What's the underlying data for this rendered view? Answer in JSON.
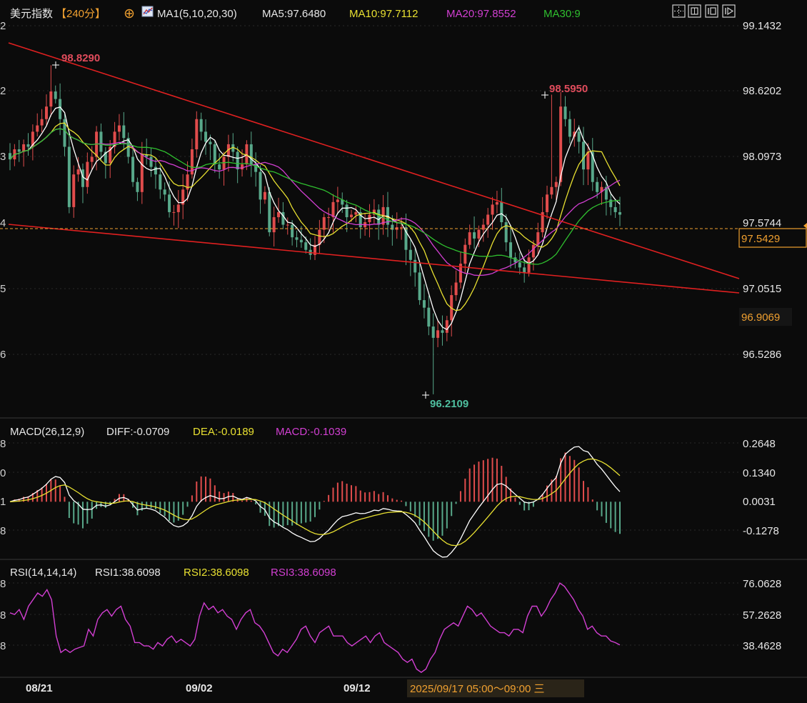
{
  "colors": {
    "background": "#0b0b0b",
    "text": "#e6e6e6",
    "up": "#e04c4c",
    "down": "#58a88a",
    "ma5": "#ffffff",
    "ma10": "#e8e031",
    "ma20": "#d23fd2",
    "ma30": "#2fbf2f",
    "trendline": "#e02020",
    "current_price": "#f0a030",
    "high_label": "#e04c5c",
    "low_label": "#4fbf9f"
  },
  "header": {
    "title": "美元指数",
    "period": "【240分】",
    "period_icon": "circle-plus-icon",
    "ma_icon": "ma-line-chart-icon",
    "ma_label": "MA1(5,10,20,30)",
    "ma5": "MA5:97.6480",
    "ma10": "MA10:97.7112",
    "ma20": "MA20:97.8552",
    "ma30": "MA30:9"
  },
  "toolbar_icons": [
    "layout-grid-icon",
    "window-split-icon",
    "chart-panel-icon",
    "expand-icon"
  ],
  "price_axis": {
    "labels": [
      "99.1432",
      "98.6202",
      "98.0973",
      "97.5744",
      "97.0515",
      "96.5286"
    ],
    "left_partial": [
      "2",
      "2",
      "3",
      "4",
      "5",
      "6"
    ],
    "current_price": "97.5429",
    "lower_box": "96.9069"
  },
  "annotations": {
    "high_left": "98.8290",
    "high_right": "98.5950",
    "low": "96.2109"
  },
  "macd": {
    "header": "MACD(26,12,9)",
    "diff": "DIFF:-0.0709",
    "dea": "DEA:-0.0189",
    "macd": "MACD:-0.1039",
    "labels": [
      "0.2648",
      "0.1340",
      "0.0031",
      "-0.1278"
    ],
    "left_partial": [
      "8",
      "0",
      "1",
      "8"
    ]
  },
  "rsi": {
    "header": "RSI(14,14,14)",
    "rsi1": "RSI1:38.6098",
    "rsi2": "RSI2:38.6098",
    "rsi3": "RSI3:38.6098",
    "labels": [
      "76.0628",
      "57.2628",
      "38.4628"
    ],
    "left_partial": [
      "8",
      "8",
      "8"
    ]
  },
  "time_axis": {
    "labels": [
      "08/21",
      "09/02",
      "09/12"
    ],
    "cursor": "2025/09/17 05:00～09:00 三"
  },
  "chart_data": {
    "type": "candlestick",
    "instrument": "美元指数",
    "period": "240分",
    "price_ticks": [
      99.1432,
      98.6202,
      98.0973,
      97.5744,
      97.0515,
      96.5286
    ],
    "close": [
      98.08,
      98.16,
      98.14,
      98.2,
      98.18,
      98.3,
      98.35,
      98.4,
      98.5,
      98.62,
      98.56,
      98.4,
      98.18,
      97.7,
      97.96,
      98.0,
      97.86,
      98.06,
      98.1,
      98.3,
      98.14,
      98.05,
      98.18,
      98.3,
      98.35,
      98.25,
      98.1,
      97.9,
      97.82,
      98.12,
      98.1,
      98.02,
      97.96,
      97.84,
      97.8,
      97.66,
      97.66,
      97.72,
      97.84,
      97.96,
      98.16,
      98.4,
      98.3,
      98.22,
      98.2,
      98.04,
      98.0,
      98.1,
      98.2,
      98.14,
      98.0,
      98.04,
      98.2,
      98.04,
      97.98,
      97.76,
      97.82,
      97.5,
      97.62,
      97.66,
      97.56,
      97.56,
      97.46,
      97.44,
      97.42,
      97.36,
      97.32,
      97.4,
      97.52,
      97.62,
      97.62,
      97.74,
      97.76,
      97.72,
      97.62,
      97.64,
      97.66,
      97.54,
      97.58,
      97.64,
      97.68,
      97.56,
      97.7,
      97.56,
      97.52,
      97.54,
      97.54,
      97.36,
      97.28,
      97.18,
      96.96,
      96.9,
      96.75,
      96.66,
      96.72,
      96.7,
      96.8,
      97.0,
      97.1,
      97.25,
      97.4,
      97.5,
      97.45,
      97.52,
      97.56,
      97.64,
      97.72,
      97.74,
      97.58,
      97.42,
      97.3,
      97.26,
      97.22,
      97.18,
      97.3,
      97.4,
      97.5,
      97.66,
      97.8,
      97.86,
      97.9,
      98.5,
      98.4,
      98.26,
      98.3,
      98.22,
      98.0,
      98.14,
      97.9,
      97.82,
      97.86,
      97.76,
      97.7,
      97.66,
      97.64
    ],
    "ma5_last": 97.648,
    "ma10_last": 97.7112,
    "ma20_last": 97.8552,
    "highs": [
      {
        "label": "98.8290",
        "value": 98.829
      },
      {
        "label": "98.5950",
        "value": 98.595
      }
    ],
    "low": {
      "label": "96.2109",
      "value": 96.2109
    },
    "current_price": 97.5429,
    "lower_level": 96.9069,
    "macd": {
      "ticks": [
        0.2648,
        0.134,
        0.0031,
        -0.1278
      ],
      "diff_last": -0.0709,
      "dea_last": -0.0189,
      "macd_last": -0.1039
    },
    "rsi": {
      "ticks": [
        76.0628,
        57.2628,
        38.4628
      ],
      "values": [
        58,
        57,
        60,
        54,
        62,
        66,
        70,
        68,
        72,
        66,
        44,
        34,
        36,
        34,
        36,
        37,
        38,
        48,
        44,
        54,
        58,
        60,
        56,
        60,
        62,
        54,
        50,
        40,
        40,
        38,
        38,
        36,
        40,
        38,
        42,
        44,
        40,
        42,
        40,
        38,
        42,
        56,
        64,
        60,
        62,
        58,
        60,
        56,
        54,
        48,
        54,
        58,
        60,
        52,
        50,
        46,
        40,
        34,
        32,
        36,
        34,
        38,
        42,
        48,
        50,
        44,
        40,
        46,
        48,
        50,
        44,
        44,
        44,
        40,
        38,
        40,
        42,
        44,
        40,
        44,
        46,
        40,
        38,
        36,
        34,
        30,
        28,
        30,
        24,
        22,
        24,
        30,
        34,
        42,
        48,
        50,
        52,
        50,
        56,
        62,
        60,
        56,
        58,
        54,
        50,
        48,
        46,
        46,
        44,
        48,
        48,
        46,
        56,
        62,
        62,
        56,
        60,
        66,
        70,
        76,
        74,
        70,
        66,
        60,
        56,
        48,
        50,
        46,
        44,
        44,
        41,
        40,
        38.6
      ]
    },
    "x_ticks": [
      "08/21",
      "09/02",
      "09/12"
    ]
  }
}
